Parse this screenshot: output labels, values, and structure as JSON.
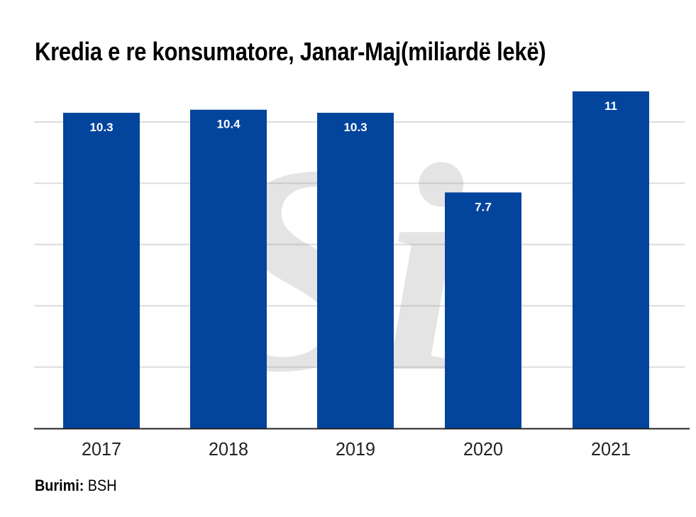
{
  "chart_data": {
    "type": "bar",
    "title": "Kredia e re konsumatore, Janar-Maj(miliardë lekë)",
    "categories": [
      "2017",
      "2018",
      "2019",
      "2020",
      "2021"
    ],
    "values": [
      10.3,
      10.4,
      10.3,
      7.7,
      11
    ],
    "data_labels": [
      "10.3",
      "10.4",
      "10.3",
      "7.7",
      "11"
    ],
    "xlabel": "",
    "ylabel": "",
    "ylim": [
      0,
      12
    ],
    "grid_values": [
      2,
      4,
      6,
      8,
      10
    ],
    "grid": true,
    "y_tick_labels_visible": false,
    "legend": "none",
    "bar_color": "#03449c",
    "watermark": "Si"
  },
  "source": {
    "label": "Burimi:",
    "value": " BSH"
  }
}
